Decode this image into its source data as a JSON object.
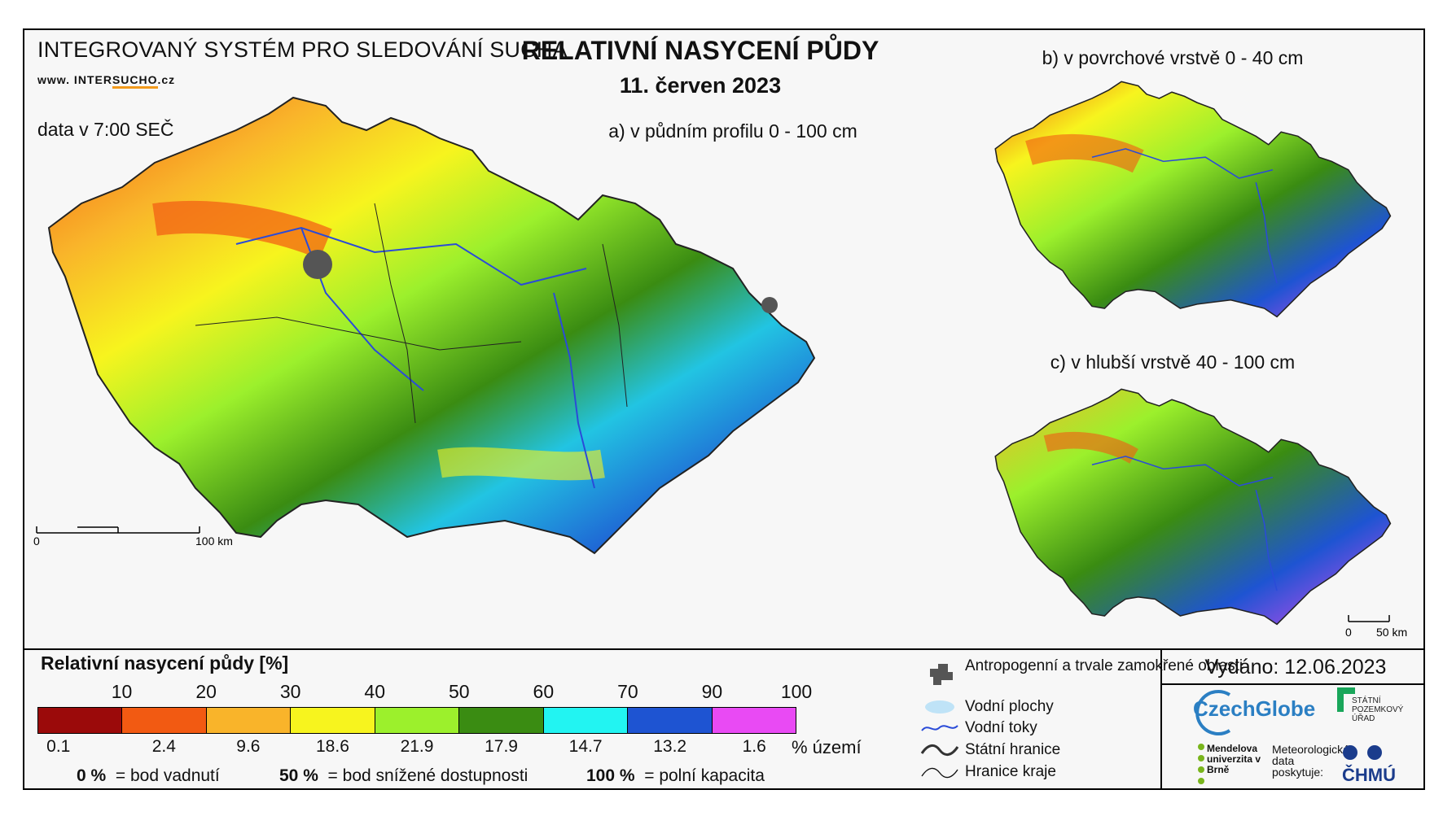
{
  "header": {
    "system": "INTEGROVANÝ SYSTÉM PRO SLEDOVÁNÍ SUCHA",
    "url_pre": "www. INTER",
    "url_mid": "SUCHO",
    "url_post": ".cz",
    "data_time": "data v 7:00 SEČ",
    "title": "RELATIVNÍ NASYCENÍ PŮDY",
    "date": "11. červen 2023"
  },
  "maps": {
    "a_label": "a) v půdním profilu 0 - 100 cm",
    "b_label": "b) v povrchové vrstvě 0 - 40 cm",
    "c_label": "c) v hlubší vrstvě 40 - 100 cm",
    "scale_main": {
      "start": "0",
      "end": "100 km"
    },
    "scale_small": {
      "start": "0",
      "end": "50 km"
    }
  },
  "legend": {
    "title": "Relativní nasycení půdy [%]",
    "ticks": [
      "10",
      "20",
      "30",
      "40",
      "50",
      "60",
      "70",
      "90",
      "100"
    ],
    "colors": [
      "#9b0a0a",
      "#f25a12",
      "#f9b42a",
      "#f7f41e",
      "#9cf02c",
      "#3a8c12",
      "#22f4f2",
      "#1e54d2",
      "#e94af4"
    ],
    "area_pct": [
      "0.1",
      "2.4",
      "9.6",
      "18.6",
      "21.9",
      "17.9",
      "14.7",
      "13.2",
      "1.6"
    ],
    "area_unit": "% území",
    "note_0_val": "0 %",
    "note_0_txt": "= bod vadnutí",
    "note_50_val": "50 %",
    "note_50_txt": "= bod snížené dostupnosti",
    "note_100_val": "100 %",
    "note_100_txt": "= polní kapacita"
  },
  "symbols": {
    "anthropogenic": "Antropogenní a trvale zamokřené oblasti",
    "water_bodies": "Vodní plochy",
    "rivers": "Vodní toky",
    "state_border": "Státní hranice",
    "region_border": "Hranice kraje"
  },
  "footer": {
    "issued": "Vydáno: 12.06.2023",
    "czechglobe": "CzechGlobe",
    "spu": "STÁTNÍ POZEMKOVÝ ÚŘAD",
    "mendel": "Mendelova univerzita v Brně",
    "met_data": "Meteorologická data poskytuje:",
    "chmu": "ČHMÚ"
  }
}
